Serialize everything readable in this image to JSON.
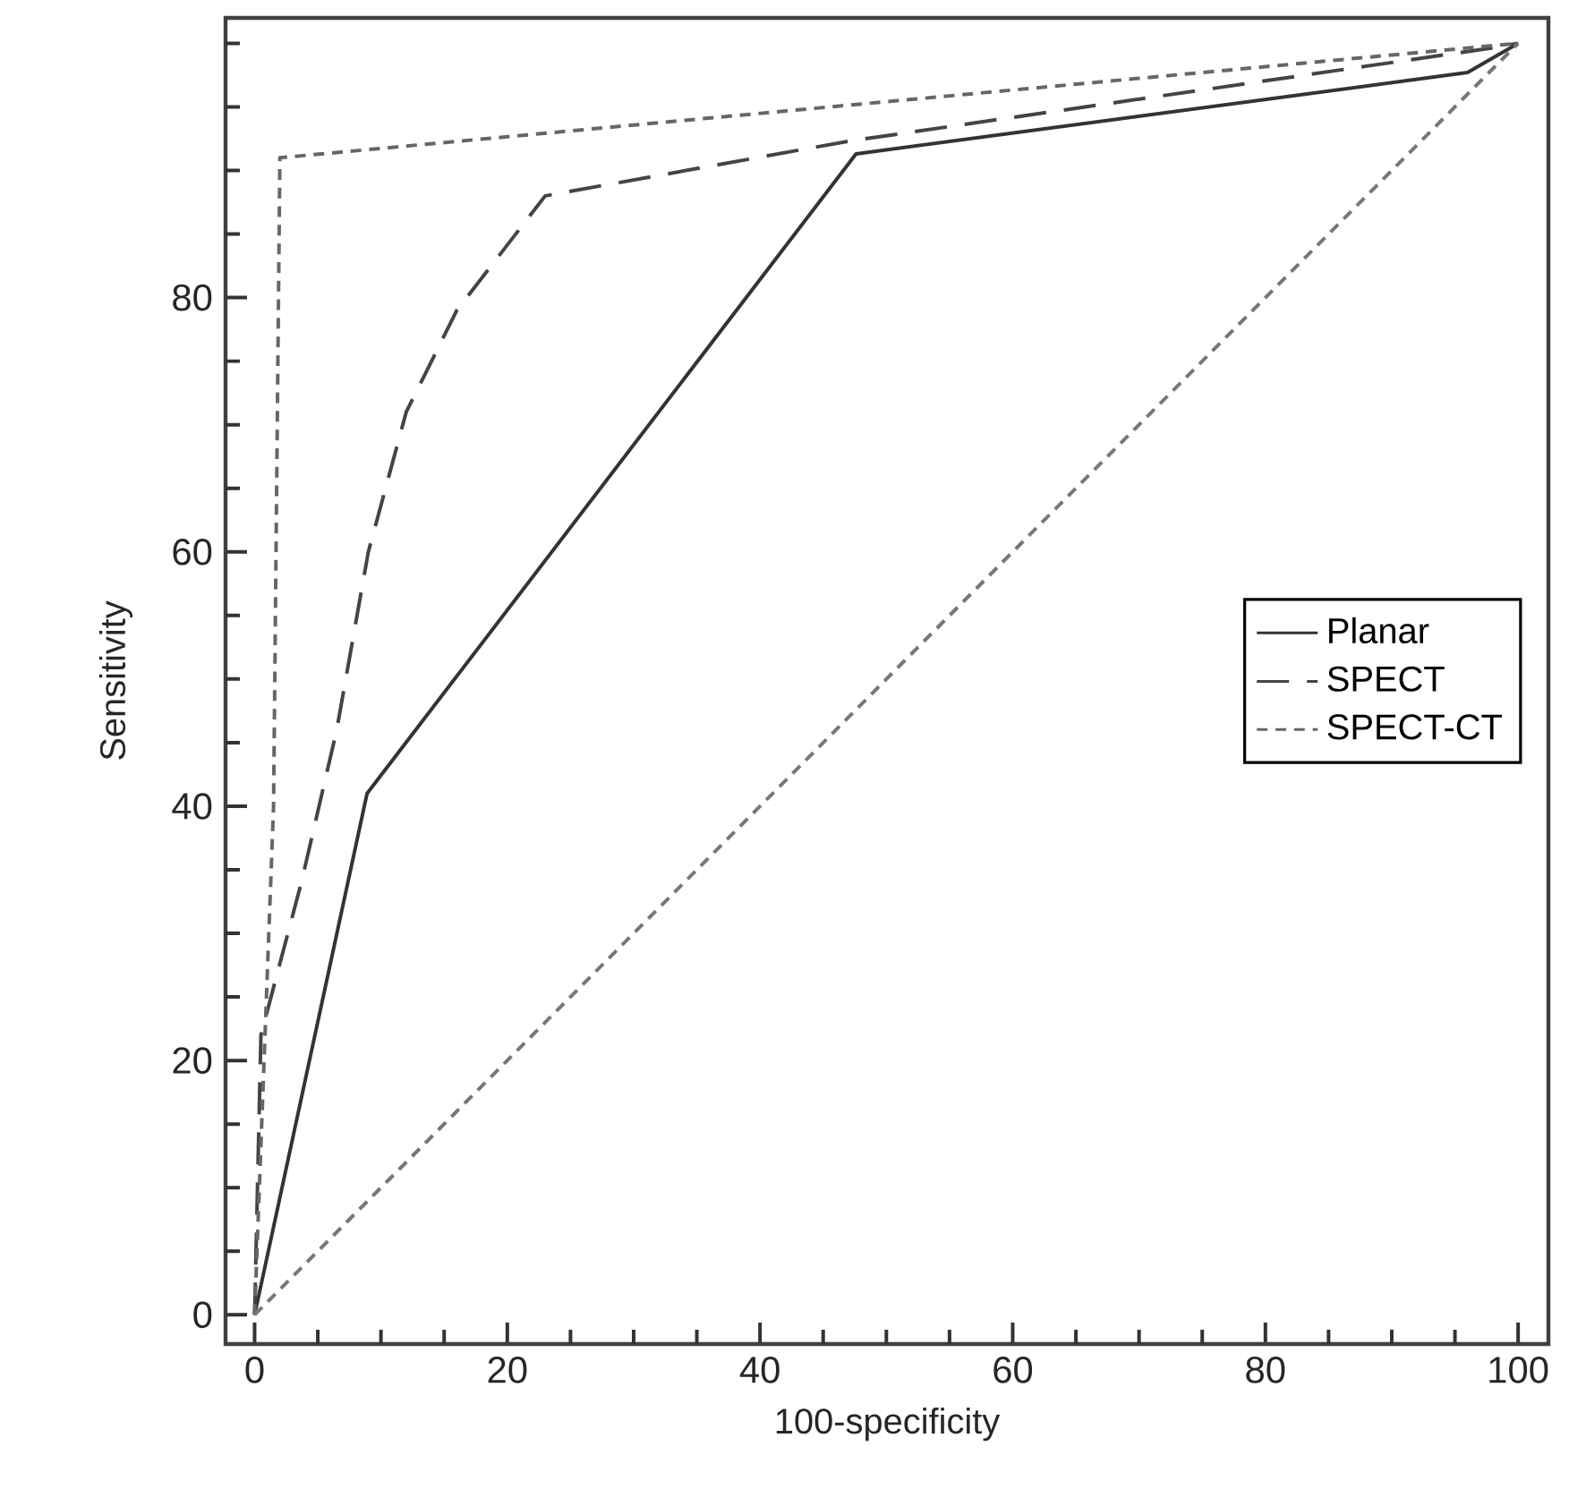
{
  "chart_data": {
    "type": "line",
    "xlabel": "100-specificity",
    "ylabel": "Sensitivity",
    "xlim": [
      -2.3,
      102.4
    ],
    "ylim": [
      -2.3,
      102
    ],
    "xticks": [
      0,
      {
        "value": 5,
        "label": null
      },
      {
        "value": 10,
        "label": null
      },
      {
        "value": 15,
        "label": null
      },
      20,
      {
        "value": 25,
        "label": null
      },
      {
        "value": 30,
        "label": null
      },
      {
        "value": 35,
        "label": null
      },
      40,
      {
        "value": 45,
        "label": null
      },
      {
        "value": 50,
        "label": null
      },
      {
        "value": 55,
        "label": null
      },
      60,
      {
        "value": 65,
        "label": null
      },
      {
        "value": 70,
        "label": null
      },
      {
        "value": 75,
        "label": null
      },
      80,
      {
        "value": 85,
        "label": null
      },
      {
        "value": 90,
        "label": null
      },
      {
        "value": 95,
        "label": null
      },
      100
    ],
    "yticks": [
      0,
      {
        "value": 5,
        "label": null
      },
      {
        "value": 10,
        "label": null
      },
      {
        "value": 15,
        "label": null
      },
      20,
      {
        "value": 25,
        "label": null
      },
      {
        "value": 30,
        "label": null
      },
      {
        "value": 35,
        "label": null
      },
      40,
      {
        "value": 45,
        "label": null
      },
      {
        "value": 50,
        "label": null
      },
      {
        "value": 55,
        "label": null
      },
      60,
      {
        "value": 65,
        "label": null
      },
      {
        "value": 70,
        "label": null
      },
      {
        "value": 75,
        "label": null
      },
      80,
      {
        "value": 85,
        "label": null
      },
      {
        "value": 90,
        "label": null
      },
      {
        "value": 95,
        "label": null
      },
      {
        "value": 100,
        "label": null
      }
    ],
    "legend": "right",
    "grid": false,
    "marker": "none",
    "series": [
      {
        "name": "Planar",
        "color": "#333333",
        "line_style": "solid",
        "x": [
          0,
          8.9,
          47.6,
          96,
          100
        ],
        "values": [
          0,
          41,
          91.3,
          97.7,
          100
        ]
      },
      {
        "name": "SPECT",
        "color": "#444444",
        "line_style": "dashed",
        "x": [
          0,
          0.5,
          3.7,
          6.5,
          9,
          12,
          16,
          23,
          47,
          98.4,
          100
        ],
        "values": [
          0,
          22,
          34,
          46,
          60,
          71,
          79,
          88,
          92.3,
          99.7,
          100
        ]
      },
      {
        "name": "SPECT-CT",
        "color": "#666666",
        "line_style": "dotted",
        "x": [
          0,
          1.5,
          2,
          100
        ],
        "values": [
          0,
          40,
          91,
          100
        ]
      },
      {
        "color": "#777777",
        "line_style": "dotted",
        "x": [
          0,
          100
        ],
        "values": [
          0,
          100
        ]
      }
    ]
  }
}
